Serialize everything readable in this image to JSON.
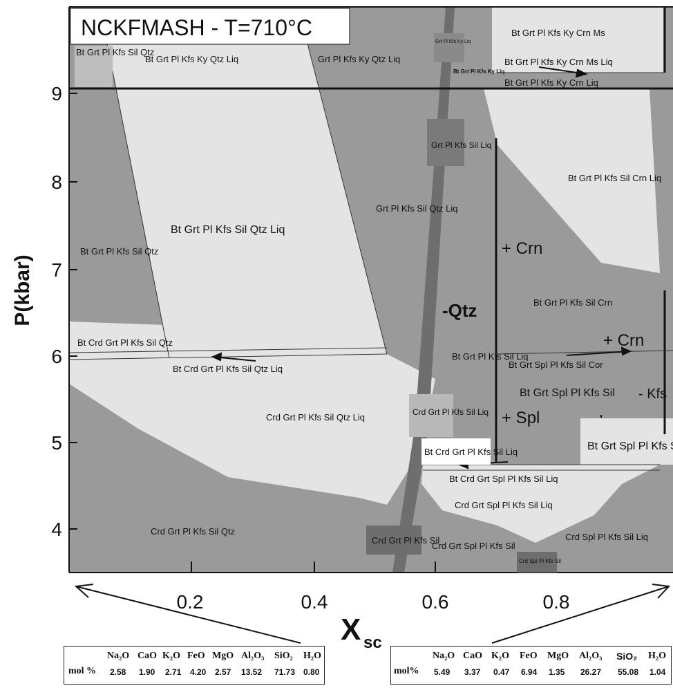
{
  "title": "NCKFMASH - T=710°C",
  "axes": {
    "ylabel": "P(kbar)",
    "xlabel_main": "X",
    "xlabel_sub": "sc",
    "yticks": [
      "9",
      "8",
      "7",
      "6",
      "5",
      "4"
    ],
    "xticks": [
      "0.2",
      "0.4",
      "0.6",
      "0.8"
    ]
  },
  "fields": [
    "Bt Grt Pl Kfs Sil Qtz",
    "Bt Grt Pl Kfs Ky Qtz Liq",
    "Grt Pl Kfs Ky Qtz Liq",
    "Grt Pl Kfs Ky Liq",
    "Bt Grt Pl Kfs Ky Liq",
    "Bt Grt Pl Kfs Ky Crn Ms",
    "Bt Grt Pl Kfs Ky Crn Ms Liq",
    "Bt Grt Pl Kfs Ky Crn Liq",
    "Grt Pl Kfs Sil Liq",
    "Bt Grt Pl Kfs Sil Crn Liq",
    "Grt Pl Kfs Sil Qtz Liq",
    "Bt Grt Pl Kfs Sil Qtz Liq",
    "Bt Grt Pl Kfs Sil Qtz",
    "Bt Grt Pl Kfs Sil Crn",
    "Bt Crd Grt Pl Kfs Sil Qtz",
    "Bt Grt Pl Kfs Sil Liq",
    "Bt Grt Spl Pl Kfs Sil Cor",
    "Bt Crd Grt Pl Kfs Sil Qtz Liq",
    "Bt Grt Spl Pl Kfs Sil",
    "Crd Grt Pl Kfs Sil Liq",
    "Crd Grt Pl Kfs Sil Qtz Liq",
    "Bt Crd Grt Pl Kfs Sil Liq",
    "Bt Grt Spl Pl Kfs Sil Liq",
    "Bt Crd Grt Spl Pl Kfs Sil Liq",
    "Crd Grt Spl Pl Kfs Sil Liq",
    "Crd Grt Pl Kfs Sil Qtz",
    "Crd Grt Pl Kfs Sil",
    "Crd Grt Spl Pl Kfs Sil",
    "Crd Spl Pl Kfs Sil",
    "Crd Spl Pl Kfs Sil Liq"
  ],
  "annotations": {
    "minus_qtz": "-Qtz",
    "plus_crn_1": "+ Crn",
    "plus_crn_2": "+ Crn",
    "plus_spl": "+ Spl",
    "minus_kfs": "- Kfs"
  },
  "composition_left": {
    "headers": [
      "Na₂O",
      "CaO",
      "K₂O",
      "FeO",
      "MgO",
      "Al₂O₃",
      "SiO₂",
      "H₂O"
    ],
    "unit": "mol %",
    "values": [
      "2.58",
      "1.90",
      "2.71",
      "4.20",
      "2.57",
      "13.52",
      "71.73",
      "0.80"
    ]
  },
  "composition_right": {
    "headers": [
      "Na₂O",
      "CaO",
      "K₂O",
      "FeO",
      "MgO",
      "Al₂O₃",
      "SiO₂",
      "H₂O"
    ],
    "unit": "mol%",
    "values": [
      "5.49",
      "3.37",
      "0.47",
      "6.94",
      "1.35",
      "26.27",
      "55.08",
      "1.04"
    ]
  },
  "colors": {
    "dark": "#9a9a9a",
    "light": "#e4e4e4",
    "darker": "#6e6e6e",
    "line": "#111111"
  }
}
